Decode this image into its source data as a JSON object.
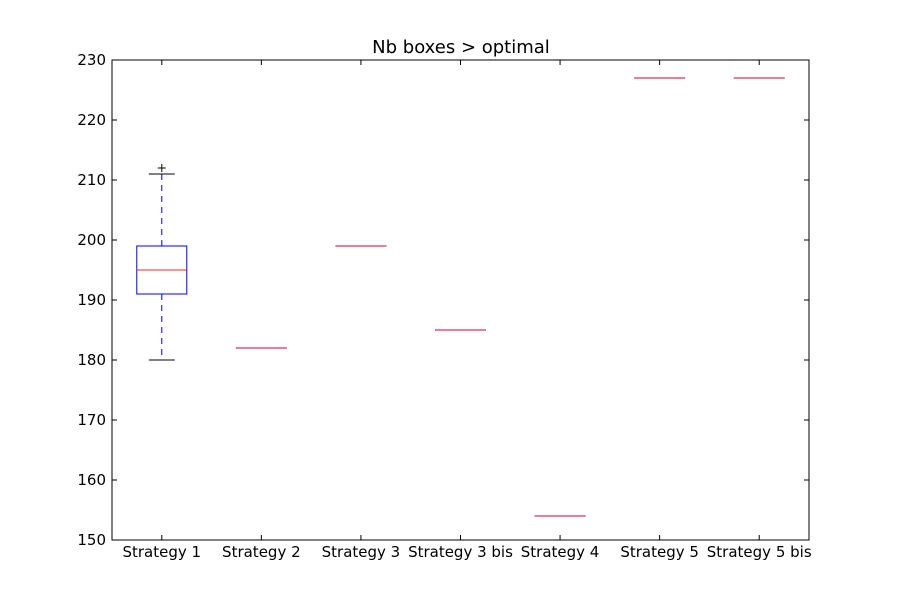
{
  "chart_data": {
    "type": "box",
    "title": "Nb boxes > optimal",
    "xlabel": "",
    "ylabel": "",
    "ylim": [
      150,
      230
    ],
    "yticks": [
      150,
      160,
      170,
      180,
      190,
      200,
      210,
      220,
      230
    ],
    "grid": false,
    "categories": [
      "Strategy 1",
      "Strategy 2",
      "Strategy 3",
      "Strategy 3 bis",
      "Strategy 4",
      "Strategy 5",
      "Strategy 5 bis"
    ],
    "boxes": [
      {
        "whisker_low": 180,
        "q1": 191,
        "median": 195,
        "q3": 199,
        "whisker_high": 211,
        "outliers": [
          212
        ]
      },
      {
        "whisker_low": 182,
        "q1": 182,
        "median": 182,
        "q3": 182,
        "whisker_high": 182,
        "outliers": []
      },
      {
        "whisker_low": 199,
        "q1": 199,
        "median": 199,
        "q3": 199,
        "whisker_high": 199,
        "outliers": []
      },
      {
        "whisker_low": 185,
        "q1": 185,
        "median": 185,
        "q3": 185,
        "whisker_high": 185,
        "outliers": []
      },
      {
        "whisker_low": 154,
        "q1": 154,
        "median": 154,
        "q3": 154,
        "whisker_high": 154,
        "outliers": []
      },
      {
        "whisker_low": 227,
        "q1": 227,
        "median": 227,
        "q3": 227,
        "whisker_high": 227,
        "outliers": []
      },
      {
        "whisker_low": 227,
        "q1": 227,
        "median": 227,
        "q3": 227,
        "whisker_high": 227,
        "outliers": []
      }
    ],
    "colors": {
      "box": "#0000ff",
      "median": "#ff0000",
      "whisker": "#0000ff",
      "cap": "#000000",
      "flier": "#000000",
      "axes": "#000000"
    }
  }
}
